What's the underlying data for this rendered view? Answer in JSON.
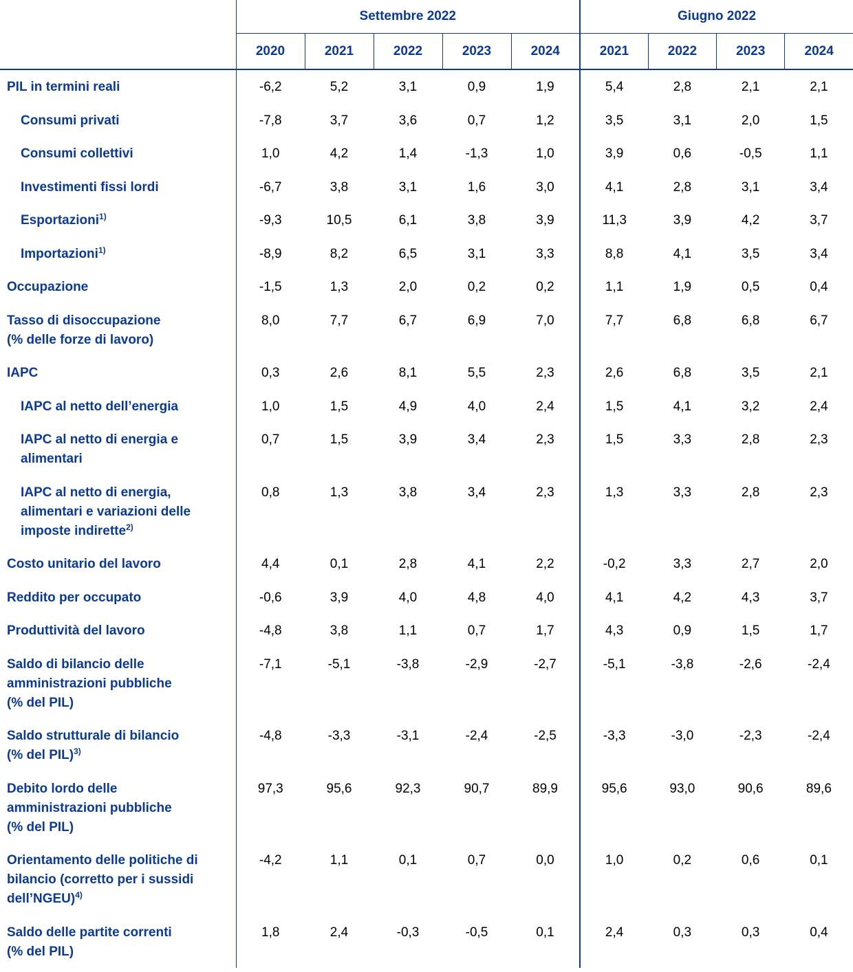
{
  "table": {
    "groups": [
      {
        "label": "Settembre 2022",
        "years": [
          "2020",
          "2021",
          "2022",
          "2023",
          "2024"
        ]
      },
      {
        "label": "Giugno 2022",
        "years": [
          "2021",
          "2022",
          "2023",
          "2024"
        ]
      }
    ],
    "rows": [
      {
        "lines": [
          "PIL in termini reali"
        ],
        "indent": false,
        "values": [
          "-6,2",
          "5,2",
          "3,1",
          "0,9",
          "1,9",
          "5,4",
          "2,8",
          "2,1",
          "2,1"
        ]
      },
      {
        "lines": [
          "Consumi privati"
        ],
        "indent": true,
        "values": [
          "-7,8",
          "3,7",
          "3,6",
          "0,7",
          "1,2",
          "3,5",
          "3,1",
          "2,0",
          "1,5"
        ]
      },
      {
        "lines": [
          "Consumi collettivi"
        ],
        "indent": true,
        "values": [
          "1,0",
          "4,2",
          "1,4",
          "-1,3",
          "1,0",
          "3,9",
          "0,6",
          "-0,5",
          "1,1"
        ]
      },
      {
        "lines": [
          "Investimenti fissi lordi"
        ],
        "indent": true,
        "values": [
          "-6,7",
          "3,8",
          "3,1",
          "1,6",
          "3,0",
          "4,1",
          "2,8",
          "3,1",
          "3,4"
        ]
      },
      {
        "lines": [
          "Esportazioni"
        ],
        "note": "1)",
        "indent": true,
        "values": [
          "-9,3",
          "10,5",
          "6,1",
          "3,8",
          "3,9",
          "11,3",
          "3,9",
          "4,2",
          "3,7"
        ]
      },
      {
        "lines": [
          "Importazioni"
        ],
        "note": "1)",
        "indent": true,
        "values": [
          "-8,9",
          "8,2",
          "6,5",
          "3,1",
          "3,3",
          "8,8",
          "4,1",
          "3,5",
          "3,4"
        ]
      },
      {
        "lines": [
          "Occupazione"
        ],
        "indent": false,
        "values": [
          "-1,5",
          "1,3",
          "2,0",
          "0,2",
          "0,2",
          "1,1",
          "1,9",
          "0,5",
          "0,4"
        ]
      },
      {
        "lines": [
          "Tasso di disoccupazione",
          "(% delle forze di lavoro)"
        ],
        "indent": false,
        "values": [
          "8,0",
          "7,7",
          "6,7",
          "6,9",
          "7,0",
          "7,7",
          "6,8",
          "6,8",
          "6,7"
        ]
      },
      {
        "lines": [
          "IAPC"
        ],
        "indent": false,
        "values": [
          "0,3",
          "2,6",
          "8,1",
          "5,5",
          "2,3",
          "2,6",
          "6,8",
          "3,5",
          "2,1"
        ]
      },
      {
        "lines": [
          "IAPC al netto dell’energia"
        ],
        "indent": true,
        "values": [
          "1,0",
          "1,5",
          "4,9",
          "4,0",
          "2,4",
          "1,5",
          "4,1",
          "3,2",
          "2,4"
        ]
      },
      {
        "lines": [
          "IAPC al netto di energia e",
          "alimentari"
        ],
        "indent": true,
        "values": [
          "0,7",
          "1,5",
          "3,9",
          "3,4",
          "2,3",
          "1,5",
          "3,3",
          "2,8",
          "2,3"
        ]
      },
      {
        "lines": [
          "IAPC al netto di energia,",
          "alimentari e variazioni delle",
          "imposte indirette"
        ],
        "note": "2)",
        "indent": true,
        "values": [
          "0,8",
          "1,3",
          "3,8",
          "3,4",
          "2,3",
          "1,3",
          "3,3",
          "2,8",
          "2,3"
        ]
      },
      {
        "lines": [
          "Costo unitario del lavoro"
        ],
        "indent": false,
        "values": [
          "4,4",
          "0,1",
          "2,8",
          "4,1",
          "2,2",
          "-0,2",
          "3,3",
          "2,7",
          "2,0"
        ]
      },
      {
        "lines": [
          "Reddito per occupato"
        ],
        "indent": false,
        "values": [
          "-0,6",
          "3,9",
          "4,0",
          "4,8",
          "4,0",
          "4,1",
          "4,2",
          "4,3",
          "3,7"
        ]
      },
      {
        "lines": [
          "Produttività del lavoro"
        ],
        "indent": false,
        "values": [
          "-4,8",
          "3,8",
          "1,1",
          "0,7",
          "1,7",
          "4,3",
          "0,9",
          "1,5",
          "1,7"
        ]
      },
      {
        "lines": [
          "Saldo di bilancio delle",
          "amministrazioni pubbliche",
          "(% del PIL)"
        ],
        "indent": false,
        "values": [
          "-7,1",
          "-5,1",
          "-3,8",
          "-2,9",
          "-2,7",
          "-5,1",
          "-3,8",
          "-2,6",
          "-2,4"
        ]
      },
      {
        "lines": [
          "Saldo strutturale di bilancio",
          "(% del PIL)"
        ],
        "note": "3)",
        "indent": false,
        "values": [
          "-4,8",
          "-3,3",
          "-3,1",
          "-2,4",
          "-2,5",
          "-3,3",
          "-3,0",
          "-2,3",
          "-2,4"
        ]
      },
      {
        "lines": [
          "Debito lordo delle",
          "amministrazioni pubbliche",
          "(% del PIL)"
        ],
        "indent": false,
        "values": [
          "97,3",
          "95,6",
          "92,3",
          "90,7",
          "89,9",
          "95,6",
          "93,0",
          "90,6",
          "89,6"
        ]
      },
      {
        "lines": [
          "Orientamento delle politiche di",
          "bilancio (corretto per i sussidi",
          "dell’NGEU)"
        ],
        "note": "4)",
        "indent": false,
        "values": [
          "-4,2",
          "1,1",
          "0,1",
          "0,7",
          "0,0",
          "1,0",
          "0,2",
          "0,6",
          "0,1"
        ]
      },
      {
        "lines": [
          "Saldo delle partite correnti",
          "(% del PIL)"
        ],
        "indent": false,
        "values": [
          "1,8",
          "2,4",
          "-0,3",
          "-0,5",
          "0,1",
          "2,4",
          "0,3",
          "0,3",
          "0,4"
        ]
      }
    ]
  }
}
